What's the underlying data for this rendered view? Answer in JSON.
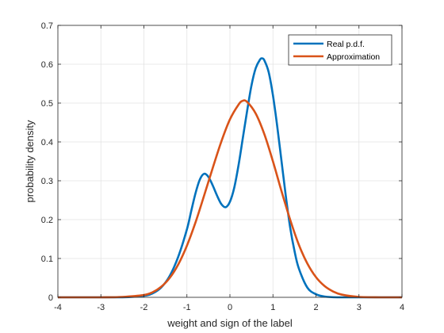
{
  "chart_data": {
    "type": "line",
    "xlabel": "weight and sign of the label",
    "ylabel": "probability density",
    "xlim": [
      -4,
      4
    ],
    "ylim": [
      0,
      0.7
    ],
    "xticks": [
      -4,
      -3,
      -2,
      -1,
      0,
      1,
      2,
      3,
      4
    ],
    "yticks": [
      0,
      0.1,
      0.2,
      0.3,
      0.4,
      0.5,
      0.6,
      0.7
    ],
    "xtick_labels": [
      "-4",
      "-3",
      "-2",
      "-1",
      "0",
      "1",
      "2",
      "3",
      "4"
    ],
    "ytick_labels": [
      "0",
      "0.1",
      "0.2",
      "0.3",
      "0.4",
      "0.5",
      "0.6",
      "0.7"
    ],
    "grid": true,
    "legend_position": "top-right",
    "series": [
      {
        "name": "Real p.d.f.",
        "color": "#0072BD",
        "x": [
          -4.0,
          -3.0,
          -2.5,
          -2.0,
          -1.8,
          -1.6,
          -1.4,
          -1.2,
          -1.0,
          -0.9,
          -0.8,
          -0.7,
          -0.6,
          -0.5,
          -0.4,
          -0.3,
          -0.2,
          -0.1,
          0.0,
          0.1,
          0.2,
          0.3,
          0.4,
          0.5,
          0.6,
          0.7,
          0.75,
          0.8,
          0.9,
          1.0,
          1.1,
          1.2,
          1.3,
          1.4,
          1.5,
          1.6,
          1.8,
          2.0,
          2.2,
          2.5,
          3.0,
          4.0
        ],
        "y": [
          0.0,
          0.0,
          0.0,
          0.004,
          0.01,
          0.025,
          0.055,
          0.105,
          0.175,
          0.222,
          0.268,
          0.303,
          0.318,
          0.31,
          0.288,
          0.262,
          0.24,
          0.232,
          0.246,
          0.282,
          0.34,
          0.41,
          0.48,
          0.545,
          0.59,
          0.612,
          0.615,
          0.61,
          0.58,
          0.52,
          0.44,
          0.35,
          0.26,
          0.18,
          0.12,
          0.075,
          0.025,
          0.008,
          0.002,
          0.0,
          0.0,
          0.0
        ]
      },
      {
        "name": "Approximation",
        "color": "#D95319",
        "x": [
          -4.0,
          -3.0,
          -2.5,
          -2.0,
          -1.8,
          -1.6,
          -1.4,
          -1.2,
          -1.0,
          -0.8,
          -0.6,
          -0.4,
          -0.2,
          0.0,
          0.2,
          0.3,
          0.4,
          0.6,
          0.8,
          1.0,
          1.2,
          1.4,
          1.6,
          1.8,
          2.0,
          2.2,
          2.4,
          2.6,
          3.0,
          3.5,
          4.0
        ],
        "y": [
          0.0,
          0.0,
          0.001,
          0.006,
          0.013,
          0.027,
          0.05,
          0.085,
          0.133,
          0.193,
          0.262,
          0.333,
          0.401,
          0.458,
          0.496,
          0.506,
          0.503,
          0.473,
          0.42,
          0.35,
          0.273,
          0.2,
          0.136,
          0.087,
          0.052,
          0.029,
          0.015,
          0.007,
          0.001,
          0.0,
          0.0
        ]
      }
    ]
  }
}
